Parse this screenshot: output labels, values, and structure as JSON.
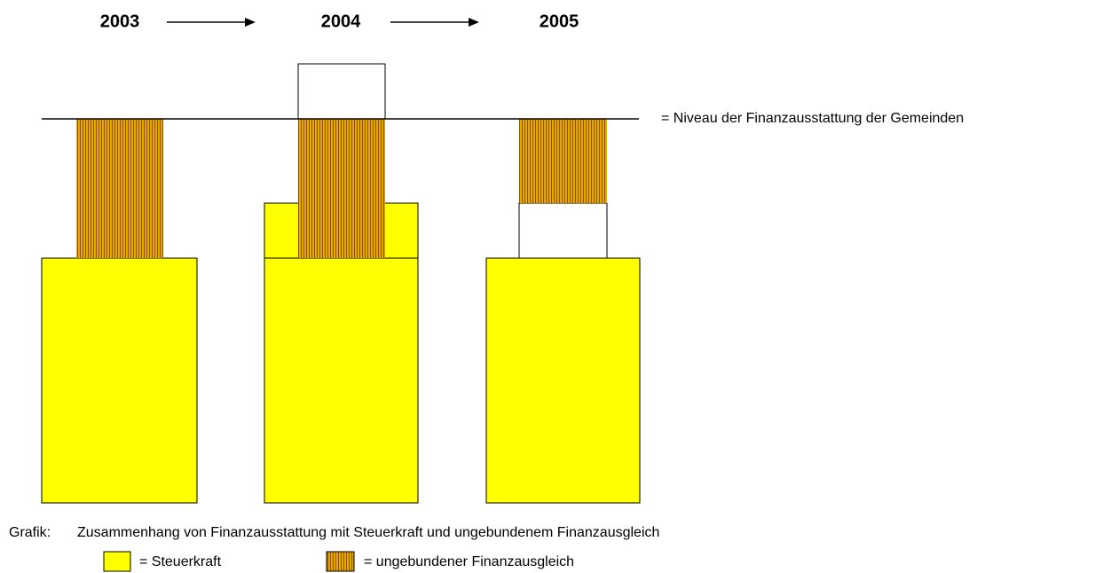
{
  "header": {
    "years": [
      "2003",
      "2004",
      "2005"
    ]
  },
  "level_label": "= Niveau der Finanzausstattung der Gemeinden",
  "caption": {
    "prefix": "Grafik:",
    "text": "Zusammenhang von Finanzausstattung mit Steuerkraft und ungebundenem Finanzausgleich"
  },
  "legend": [
    {
      "label": "= Steuerkraft"
    },
    {
      "label": "= ungebundener Finanzausgleich"
    }
  ]
}
